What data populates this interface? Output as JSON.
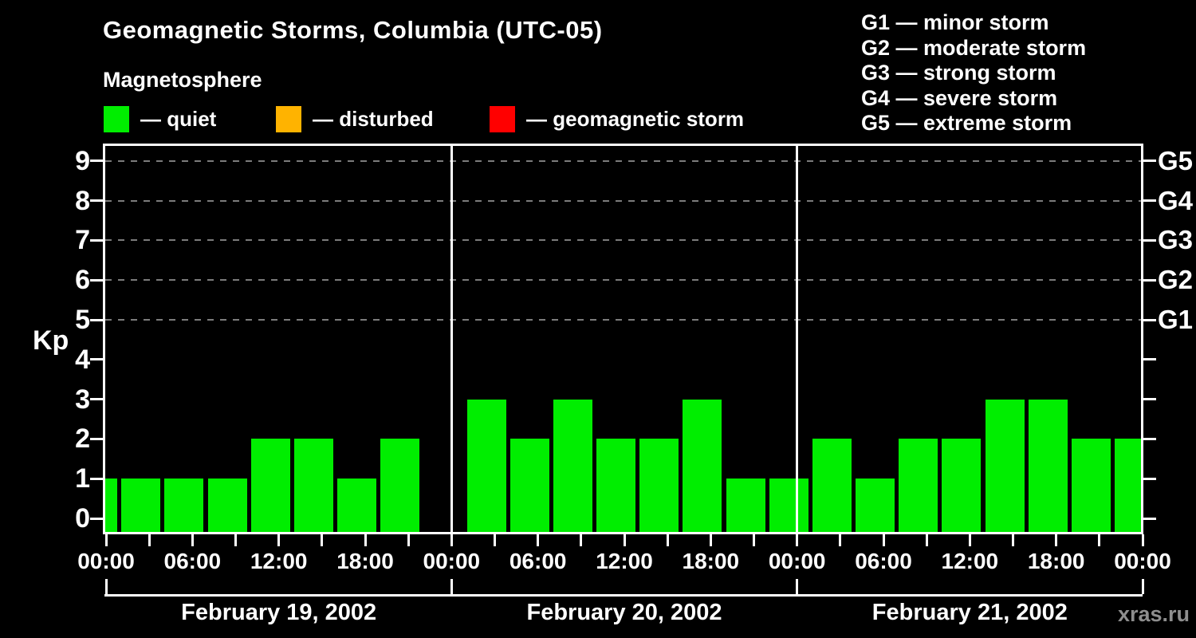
{
  "title": "Geomagnetic Storms, Columbia (UTC-05)",
  "subtitle": "Magnetosphere",
  "watermark": "xras.ru",
  "legend": [
    {
      "label": "— quiet",
      "color": "#00EE00"
    },
    {
      "label": "— disturbed",
      "color": "#FFB300"
    },
    {
      "label": "— geomagnetic storm",
      "color": "#FF0000"
    }
  ],
  "storm_scale": [
    "G1 — minor storm",
    "G2 — moderate storm",
    "G3 — strong storm",
    "G4 — severe storm",
    "G5 — extreme storm"
  ],
  "y_axis": {
    "label": "Kp",
    "tick_labels": [
      "0",
      "1",
      "2",
      "3",
      "4",
      "5",
      "6",
      "7",
      "8",
      "9"
    ],
    "g_labels": [
      {
        "kp": 5,
        "label": "G1"
      },
      {
        "kp": 6,
        "label": "G2"
      },
      {
        "kp": 7,
        "label": "G3"
      },
      {
        "kp": 8,
        "label": "G4"
      },
      {
        "kp": 9,
        "label": "G5"
      }
    ]
  },
  "x_axis": {
    "time_labels": [
      "00:00",
      "06:00",
      "12:00",
      "18:00"
    ]
  },
  "chart_data": {
    "type": "bar",
    "title": "Geomagnetic Storms, Columbia (UTC-05)",
    "ylabel": "Kp",
    "ylim": [
      0,
      9
    ],
    "grid_levels": [
      5,
      6,
      7,
      8,
      9
    ],
    "grid_style": "dashed",
    "legend_position": "top",
    "bar_color": "#00EE00",
    "time_step_hours": 3,
    "days": [
      {
        "date": "February 19, 2002",
        "values": [
          1,
          1,
          1,
          1,
          2,
          2,
          1,
          2
        ]
      },
      {
        "date": "February 20, 2002",
        "values": [
          3,
          2,
          3,
          2,
          2,
          3,
          1,
          1
        ]
      },
      {
        "date": "February 21, 2002",
        "values": [
          2,
          1,
          2,
          2,
          3,
          3,
          2,
          2
        ]
      }
    ]
  }
}
